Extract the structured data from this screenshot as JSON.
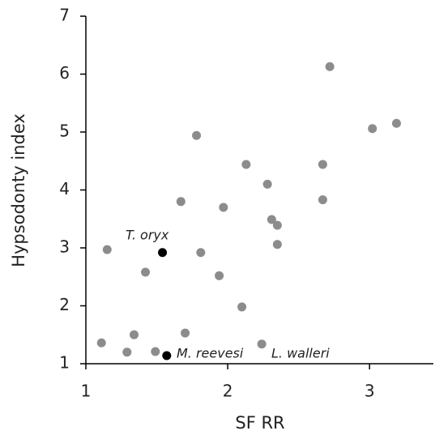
{
  "chart_data": {
    "type": "scatter",
    "x_label": "SF RR",
    "y_label": "Hypsodonty index",
    "xlim": [
      1,
      3.45
    ],
    "ylim": [
      1,
      7
    ],
    "xticks": [
      1,
      2,
      3
    ],
    "yticks": [
      1,
      2,
      3,
      4,
      5,
      6,
      7
    ],
    "series": [
      {
        "color": "#8c8c8c",
        "x": [
          2.72,
          3.19,
          3.02,
          1.78,
          2.13,
          2.67,
          2.28,
          1.67,
          2.67,
          1.97,
          2.31,
          2.35,
          2.35,
          1.15,
          1.81,
          1.42,
          1.94,
          2.1,
          1.34,
          1.7,
          1.11,
          1.29,
          1.49,
          2.24
        ],
        "values": [
          6.13,
          5.15,
          5.06,
          4.94,
          4.44,
          4.44,
          4.1,
          3.8,
          3.83,
          3.7,
          3.49,
          3.39,
          3.06,
          2.97,
          2.92,
          2.58,
          2.52,
          1.98,
          1.5,
          1.53,
          1.36,
          1.2,
          1.21,
          1.34
        ]
      },
      {
        "color": "#000000",
        "x": [
          1.54,
          1.57
        ],
        "values": [
          2.92,
          1.14
        ]
      }
    ],
    "annotations": [
      "T. oryx",
      "M. reevesi",
      "L. walleri"
    ]
  }
}
